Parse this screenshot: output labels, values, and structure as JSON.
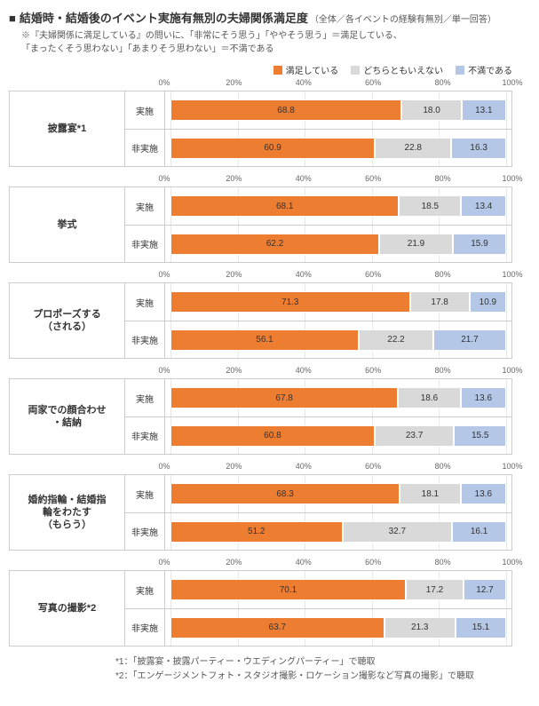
{
  "title_marker": "■",
  "title": "結婚時・結婚後のイベント実施有無別の夫婦関係満足度",
  "subtitle": "（全体／各イベントの経験有無別／単一回答）",
  "note_line1": "※『夫婦関係に満足している』の問いに、「非常にそう思う」「ややそう思う」＝満足している、",
  "note_line2": "「まったくそう思わない」「あまりそう思わない」＝不満である",
  "legend": {
    "items": [
      {
        "label": "満足している",
        "color": "#ed7d31"
      },
      {
        "label": "どちらともいえない",
        "color": "#d9d9d9"
      },
      {
        "label": "不満である",
        "color": "#b4c7e7"
      }
    ]
  },
  "axis": {
    "ticks": [
      0,
      20,
      40,
      60,
      80,
      100
    ],
    "tick_labels": [
      "0%",
      "20%",
      "40%",
      "60%",
      "80%",
      "100%"
    ]
  },
  "colors": {
    "satisfied": "#ed7d31",
    "neutral": "#d9d9d9",
    "dissatisfied": "#b4c7e7",
    "border": "#cccccc",
    "grid": "#e8e8e8",
    "bg": "#ffffff",
    "text": "#333333"
  },
  "row_status": {
    "done": "実施",
    "notdone": "非実施"
  },
  "charts": [
    {
      "label": "披露宴*1",
      "rows": [
        {
          "status": "done",
          "values": [
            68.8,
            18.0,
            13.1
          ]
        },
        {
          "status": "notdone",
          "values": [
            60.9,
            22.8,
            16.3
          ]
        }
      ]
    },
    {
      "label": "挙式",
      "rows": [
        {
          "status": "done",
          "values": [
            68.1,
            18.5,
            13.4
          ]
        },
        {
          "status": "notdone",
          "values": [
            62.2,
            21.9,
            15.9
          ]
        }
      ]
    },
    {
      "label": "プロポーズする\n（される）",
      "rows": [
        {
          "status": "done",
          "values": [
            71.3,
            17.8,
            10.9
          ]
        },
        {
          "status": "notdone",
          "values": [
            56.1,
            22.2,
            21.7
          ]
        }
      ]
    },
    {
      "label": "両家での顔合わせ\n・結納",
      "rows": [
        {
          "status": "done",
          "values": [
            67.8,
            18.6,
            13.6
          ]
        },
        {
          "status": "notdone",
          "values": [
            60.8,
            23.7,
            15.5
          ]
        }
      ]
    },
    {
      "label": "婚約指輪・結婚指\n輪をわたす\n（もらう）",
      "rows": [
        {
          "status": "done",
          "values": [
            68.3,
            18.1,
            13.6
          ]
        },
        {
          "status": "notdone",
          "values": [
            51.2,
            32.7,
            16.1
          ]
        }
      ]
    },
    {
      "label": "写真の撮影*2",
      "rows": [
        {
          "status": "done",
          "values": [
            70.1,
            17.2,
            12.7
          ]
        },
        {
          "status": "notdone",
          "values": [
            63.7,
            21.3,
            15.1
          ]
        }
      ]
    }
  ],
  "footnotes": {
    "f1": "*1：「披露宴・披露パーティー・ウエディングパーティー」で聴取",
    "f2": "*2：「エンゲージメントフォト・スタジオ撮影・ロケーション撮影など写真の撮影」で聴取"
  }
}
